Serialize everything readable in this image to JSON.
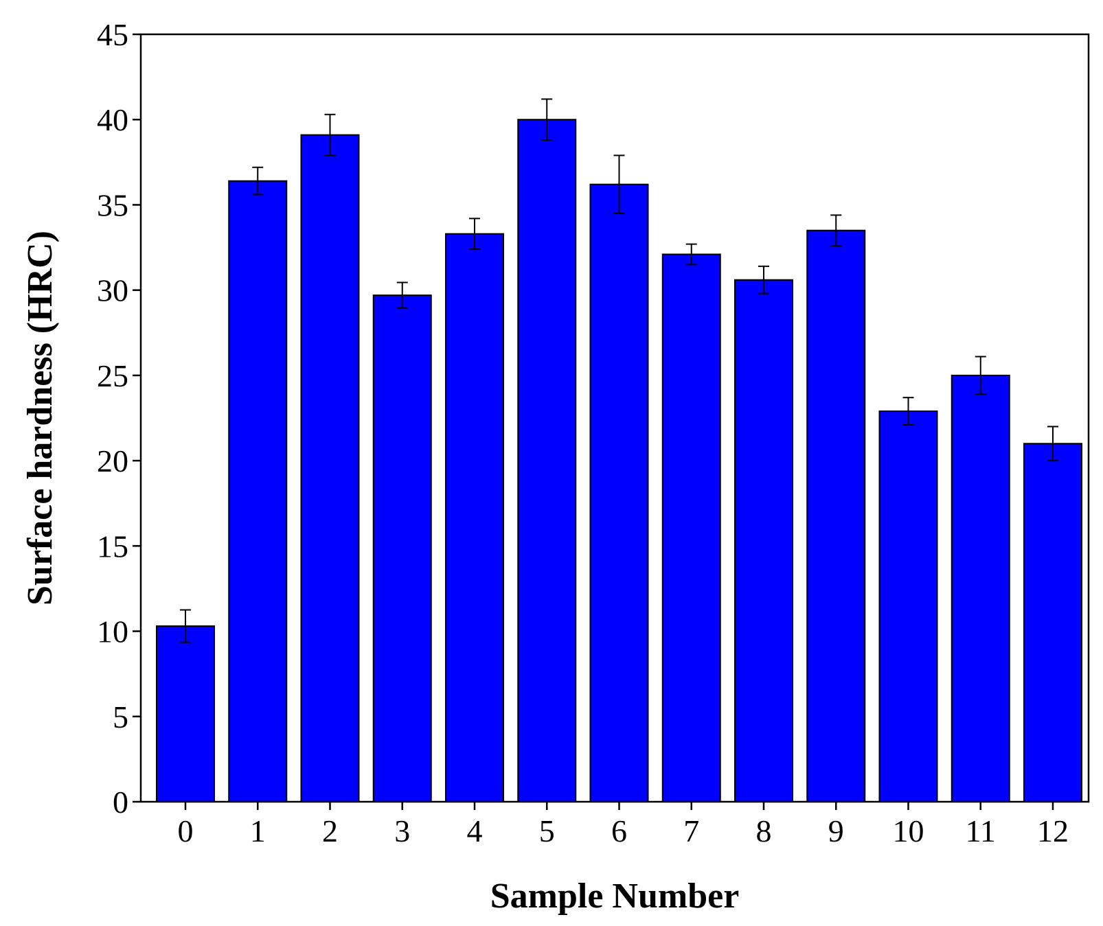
{
  "chart_data": {
    "type": "bar",
    "title": "",
    "xlabel": "Sample Number",
    "ylabel": "Surface hardness (HRC)",
    "categories": [
      "0",
      "1",
      "2",
      "3",
      "4",
      "5",
      "6",
      "7",
      "8",
      "9",
      "10",
      "11",
      "12"
    ],
    "values": [
      10.3,
      36.4,
      39.1,
      29.7,
      33.3,
      40.0,
      36.2,
      32.1,
      30.6,
      33.5,
      22.9,
      25.0,
      21.0
    ],
    "errors": [
      0.95,
      0.8,
      1.2,
      0.75,
      0.9,
      1.2,
      1.7,
      0.6,
      0.8,
      0.9,
      0.8,
      1.1,
      1.0
    ],
    "yticks": [
      "0",
      "5",
      "10",
      "15",
      "20",
      "25",
      "30",
      "35",
      "40",
      "45"
    ],
    "ylim": [
      0,
      45
    ],
    "grid": false,
    "colors": {
      "bar_fill": "#0000ff",
      "bar_edge": "#000000"
    }
  }
}
